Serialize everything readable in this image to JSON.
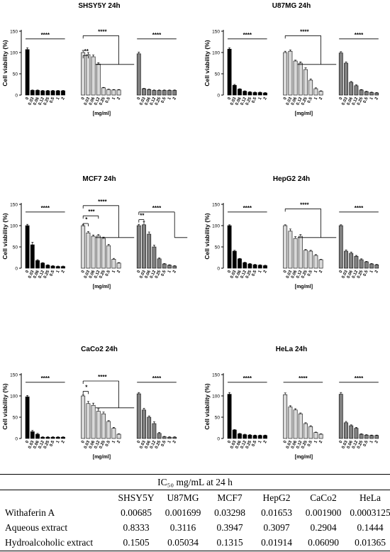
{
  "chart_data": [
    {
      "type": "bar",
      "title": "SHSY5Y 24h",
      "ylabel": "Cell viability (%)",
      "xlabel": "[mg/ml]",
      "ylim": [
        0,
        150
      ],
      "yticks": [
        0,
        50,
        100,
        150
      ],
      "categories": [
        "0",
        "0.03",
        "0.06",
        "0.12",
        "0.25",
        "0.5",
        "1",
        "2"
      ],
      "series": [
        {
          "values": [
            107,
            11,
            11,
            10,
            10,
            10,
            10,
            10
          ],
          "errors": [
            4,
            1,
            1,
            1,
            1,
            1,
            1,
            1
          ],
          "color": "#000000"
        },
        {
          "values": [
            100,
            95,
            90,
            73,
            17,
            13,
            12,
            12
          ],
          "errors": [
            5,
            5,
            4,
            3,
            1,
            1,
            1,
            1
          ],
          "color": "#d9d9d9"
        },
        {
          "values": [
            97,
            15,
            13,
            11,
            11,
            11,
            11,
            11
          ],
          "errors": [
            4,
            1,
            1,
            1,
            1,
            1,
            1,
            1
          ],
          "color": "#808080"
        }
      ],
      "annotations": [
        "****",
        "**",
        "****",
        "****"
      ]
    },
    {
      "type": "bar",
      "title": "U87MG 24h",
      "ylabel": "Cell viability (%)",
      "xlabel": "[mg/ml]",
      "ylim": [
        0,
        150
      ],
      "yticks": [
        0,
        50,
        100,
        150
      ],
      "categories": [
        "0",
        "0.03",
        "0.06",
        "0.12",
        "0.25",
        "0.5",
        "1",
        "2"
      ],
      "series": [
        {
          "values": [
            108,
            23,
            14,
            9,
            7,
            6,
            6,
            5
          ],
          "errors": [
            3,
            2,
            1,
            1,
            1,
            1,
            1,
            1
          ],
          "color": "#000000"
        },
        {
          "values": [
            100,
            103,
            80,
            75,
            60,
            35,
            15,
            9
          ],
          "errors": [
            3,
            3,
            2,
            3,
            4,
            3,
            2,
            1
          ],
          "color": "#d9d9d9"
        },
        {
          "values": [
            99,
            75,
            30,
            22,
            12,
            8,
            6,
            5
          ],
          "errors": [
            3,
            3,
            2,
            2,
            1,
            1,
            1,
            1
          ],
          "color": "#808080"
        }
      ],
      "annotations": [
        "****",
        "****",
        "****"
      ]
    },
    {
      "type": "bar",
      "title": "MCF7 24h",
      "ylabel": "Cell viability (%)",
      "xlabel": "[mg/ml]",
      "ylim": [
        0,
        150
      ],
      "yticks": [
        0,
        50,
        100,
        150
      ],
      "categories": [
        "0",
        "0.03",
        "0.06",
        "0.12",
        "0.25",
        "0.5",
        "1",
        "2"
      ],
      "series": [
        {
          "values": [
            100,
            55,
            18,
            12,
            7,
            5,
            4,
            4
          ],
          "errors": [
            3,
            6,
            2,
            1,
            1,
            1,
            1,
            1
          ],
          "color": "#000000"
        },
        {
          "values": [
            100,
            83,
            75,
            76,
            70,
            53,
            21,
            12
          ],
          "errors": [
            3,
            3,
            3,
            3,
            3,
            3,
            2,
            1
          ],
          "color": "#d9d9d9"
        },
        {
          "values": [
            100,
            102,
            80,
            50,
            22,
            10,
            7,
            5
          ],
          "errors": [
            3,
            7,
            5,
            4,
            2,
            1,
            1,
            1
          ],
          "color": "#808080"
        }
      ],
      "annotations": [
        "****",
        "*",
        "***",
        "****",
        "**",
        "****"
      ]
    },
    {
      "type": "bar",
      "title": "HepG2 24h",
      "ylabel": "Cell viability (%)",
      "xlabel": "[mg/ml]",
      "ylim": [
        0,
        150
      ],
      "yticks": [
        0,
        50,
        100,
        150
      ],
      "categories": [
        "0",
        "0.03",
        "0.06",
        "0.12",
        "0.25",
        "0.5",
        "1",
        "2"
      ],
      "series": [
        {
          "values": [
            100,
            40,
            22,
            13,
            10,
            8,
            7,
            6
          ],
          "errors": [
            2,
            2,
            1,
            1,
            1,
            1,
            1,
            1
          ],
          "color": "#000000"
        },
        {
          "values": [
            100,
            87,
            70,
            75,
            42,
            40,
            30,
            20
          ],
          "errors": [
            2,
            5,
            4,
            4,
            2,
            2,
            2,
            1
          ],
          "color": "#d9d9d9"
        },
        {
          "values": [
            100,
            40,
            35,
            28,
            20,
            15,
            10,
            8
          ],
          "errors": [
            2,
            3,
            3,
            2,
            2,
            1,
            1,
            1
          ],
          "color": "#808080"
        }
      ],
      "annotations": [
        "****",
        "****",
        "****"
      ]
    },
    {
      "type": "bar",
      "title": "CaCo2 24h",
      "ylabel": "Cell viability (%)",
      "xlabel": "[mg/ml]",
      "ylim": [
        0,
        150
      ],
      "yticks": [
        0,
        50,
        100,
        150
      ],
      "categories": [
        "0",
        "0.03",
        "0.06",
        "0.12",
        "0.25",
        "0.5",
        "1",
        "2"
      ],
      "series": [
        {
          "values": [
            98,
            16,
            10,
            3,
            3,
            3,
            3,
            3
          ],
          "errors": [
            3,
            3,
            2,
            1,
            1,
            1,
            1,
            1
          ],
          "color": "#000000"
        },
        {
          "values": [
            100,
            82,
            78,
            64,
            58,
            40,
            24,
            10
          ],
          "errors": [
            3,
            5,
            5,
            6,
            4,
            2,
            2,
            1
          ],
          "color": "#d9d9d9"
        },
        {
          "values": [
            105,
            67,
            50,
            35,
            12,
            4,
            3,
            3
          ],
          "errors": [
            3,
            4,
            3,
            4,
            2,
            1,
            1,
            1
          ],
          "color": "#808080"
        }
      ],
      "annotations": [
        "****",
        "*",
        "****",
        "****"
      ]
    },
    {
      "type": "bar",
      "title": "HeLa 24h",
      "ylabel": "Cell viability (%)",
      "xlabel": "[mg/ml]",
      "ylim": [
        0,
        150
      ],
      "yticks": [
        0,
        50,
        100,
        150
      ],
      "categories": [
        "0",
        "0.03",
        "0.06",
        "0.12",
        "0.25",
        "0.5",
        "1",
        "2"
      ],
      "series": [
        {
          "values": [
            104,
            20,
            11,
            9,
            8,
            7,
            7,
            7
          ],
          "errors": [
            4,
            1,
            1,
            1,
            1,
            1,
            1,
            1
          ],
          "color": "#000000"
        },
        {
          "values": [
            103,
            74,
            67,
            58,
            35,
            28,
            14,
            10
          ],
          "errors": [
            4,
            3,
            3,
            2,
            2,
            2,
            1,
            1
          ],
          "color": "#d9d9d9"
        },
        {
          "values": [
            104,
            37,
            30,
            24,
            10,
            8,
            7,
            7
          ],
          "errors": [
            4,
            3,
            2,
            2,
            1,
            1,
            1,
            1
          ],
          "color": "#808080"
        }
      ],
      "annotations": [
        "****",
        "****",
        "****"
      ]
    }
  ],
  "ic50_table": {
    "title": "IC₅₀ mg/mL at 24 h",
    "columns": [
      "SHSY5Y",
      "U87MG",
      "MCF7",
      "HepG2",
      "CaCo2",
      "HeLa"
    ],
    "rows": [
      {
        "label": "Withaferin A",
        "values": [
          "0.00685",
          "0.001699",
          "0.03298",
          "0.01653",
          "0.001900",
          "0.0003125"
        ]
      },
      {
        "label": "Aqueous extract",
        "values": [
          "0.8333",
          "0.3116",
          "0.3947",
          "0.3097",
          "0.2904",
          "0.1444"
        ]
      },
      {
        "label": "Hydroalcoholic extract",
        "values": [
          "0.1505",
          "0.05034",
          "0.1315",
          "0.01914",
          "0.06090",
          "0.01365"
        ]
      }
    ]
  }
}
